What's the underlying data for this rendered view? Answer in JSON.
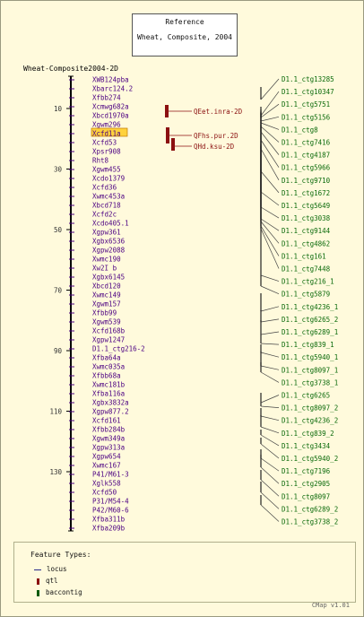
{
  "reference": {
    "title": "Reference",
    "map": "Wheat, Composite, 2004"
  },
  "map": {
    "title": "Wheat-Composite2004-2D",
    "axis_ticks": [
      "10",
      "30",
      "50",
      "70",
      "90",
      "110",
      "130"
    ],
    "loci": [
      "XWB124pba",
      "Xbarc124.2",
      "Xfbb274",
      "Xcmwg682a",
      "Xbcd1970a",
      "Xgwm296",
      "Xcfd11a",
      "Xcfd53",
      "Xpsr908",
      "Rht8",
      "Xgwm455",
      "Xcdo1379",
      "Xcfd36",
      "Xwmc453a",
      "Xbcd718",
      "Xcfd2c",
      "Xcdo405.1",
      "Xgpw361",
      "Xgbx6536",
      "Xgpw2088",
      "Xwmc190",
      "Xw2I b",
      "Xgbx6145",
      "Xbcd120",
      "Xwmc149",
      "Xgwm157",
      "Xfbb99",
      "Xgwm539",
      "Xcfd168b",
      "Xgpw1247",
      "D1.1_ctg216-2",
      "Xfba64a",
      "Xwmc035a",
      "Xfbb68a",
      "Xwmc181b",
      "Xfba116a",
      "Xgbx3832a",
      "Xgpw877.2",
      "Xcfd161",
      "Xfbb284b",
      "Xgwm349a",
      "Xgpw313a",
      "Xgpw654",
      "Xwmc167",
      "P41/M61-3",
      "Xglk558",
      "Xcfd50",
      "P31/M54-4",
      "P42/M60-6",
      "Xfba311b",
      "Xfba209b"
    ],
    "highlighted_locus": "Xcfd11a",
    "qtls": [
      "QEet.inra-2D",
      "QFhs.pur.2D",
      "QHd.ksu-2D"
    ],
    "contigs": [
      "D1.1_ctg13285",
      "D1.1_ctg10347",
      "D1.1_ctg5751",
      "D1.1_ctg5156",
      "D1.1_ctg8",
      "D1.1_ctg7416",
      "D1.1_ctg4187",
      "D1.1_ctg5966",
      "D1.1_ctg9710",
      "D1.1_ctg1672",
      "D1.1_ctg5649",
      "D1.1_ctg3038",
      "D1.1_ctg9144",
      "D1.1_ctg4862",
      "D1.1_ctg161",
      "D1.1_ctg7448",
      "D1.1_ctg216_1",
      "D1.1_ctg5879",
      "D1.1_ctg4236_1",
      "D1.1_ctg6265_2",
      "D1.1_ctg6289_1",
      "D1.1_ctg839_1",
      "D1.1_ctg5940_1",
      "D1.1_ctg8097_1",
      "D1.1_ctg3738_1",
      "D1.1_ctg6265",
      "D1.1_ctg8097_2",
      "D1.1_ctg4236_2",
      "D1.1_ctg839_2",
      "D1.1_ctg3434",
      "D1.1_ctg5940_2",
      "D1.1_ctg7196",
      "D1.1_ctg2905",
      "D1.1_ctg8097",
      "D1.1_ctg6289_2",
      "D1.1_ctg3738_2"
    ]
  },
  "legend": {
    "title": "Feature Types:",
    "locus": "locus",
    "qtl": "qtl",
    "baccontig": "baccontig"
  },
  "footer": "CMap v1.01",
  "colors": {
    "locus": "#4b0082",
    "qtl": "#8b1010",
    "contig": "#0a6a0a",
    "highlight": "#ffd23c",
    "background": "#fffadc"
  }
}
